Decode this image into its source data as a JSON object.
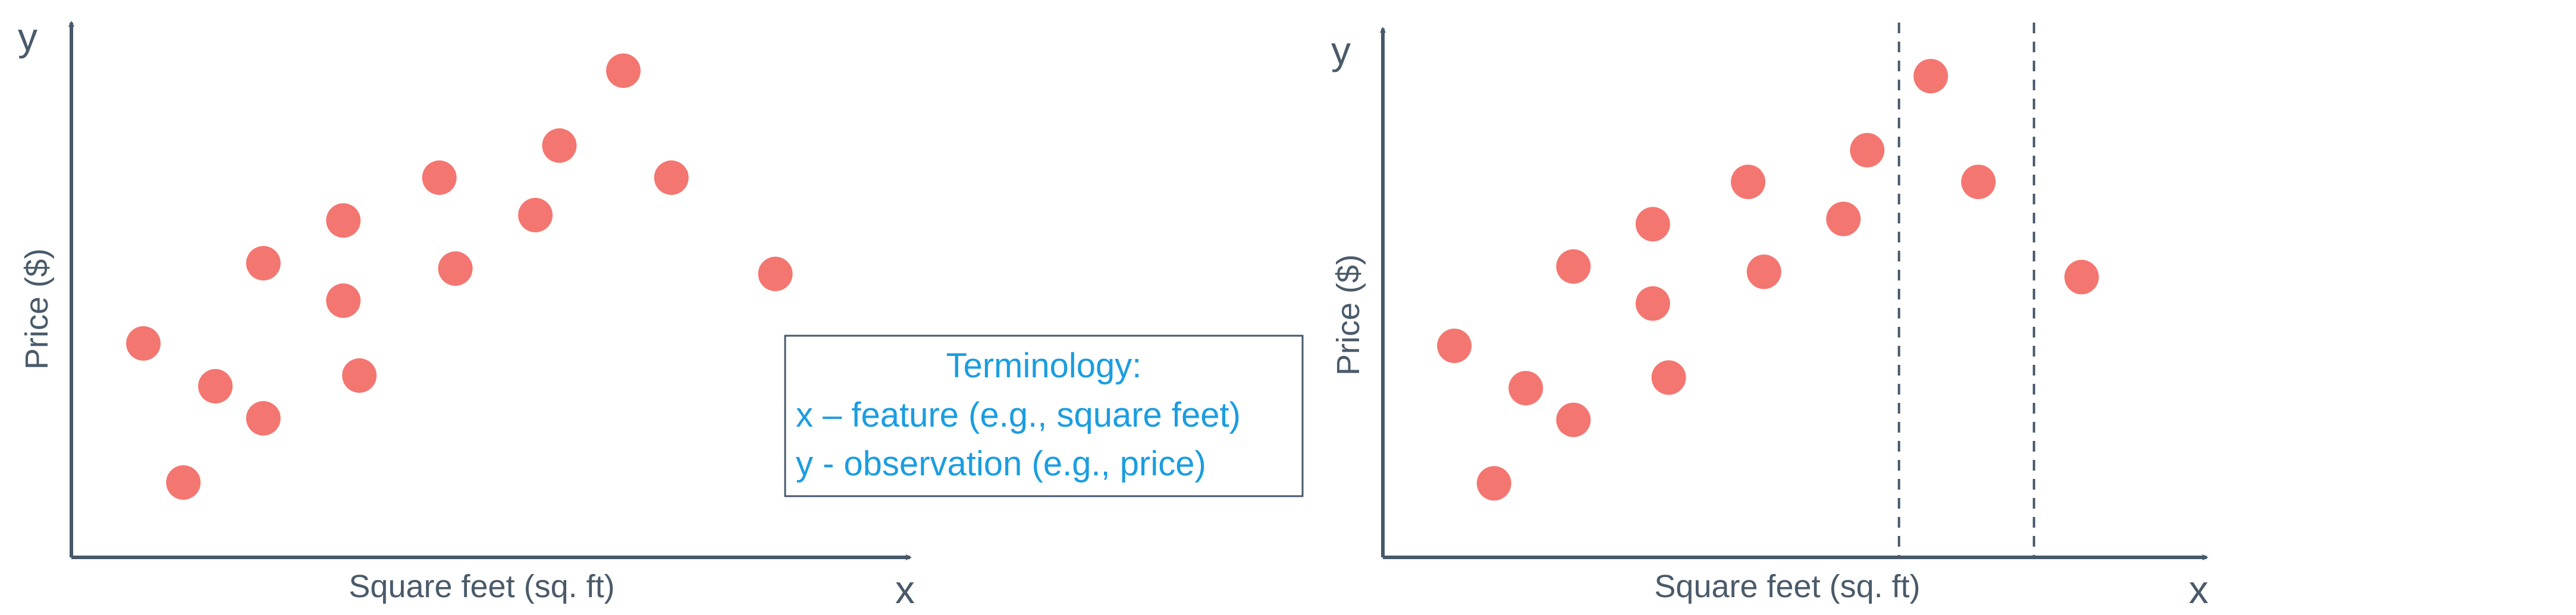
{
  "colors": {
    "point": "#f47670",
    "axis": "#47586b",
    "text": "#4a5a6a",
    "terminology": "#1a9de0",
    "dashed": "#47586b"
  },
  "terminology": {
    "title": "Terminology:",
    "line1": "x – feature (e.g., square feet)",
    "line2": "y - observation (e.g., price)"
  },
  "chart_data": [
    {
      "type": "scatter",
      "title": "",
      "xlabel": "Square feet (sq. ft)",
      "ylabel": "Price ($)",
      "x_axis_letter": "x",
      "y_axis_letter": "y",
      "xlim": [
        0,
        10
      ],
      "ylim": [
        0,
        10
      ],
      "grid": false,
      "points": [
        {
          "x": 0.9,
          "y": 4.0
        },
        {
          "x": 1.4,
          "y": 1.4
        },
        {
          "x": 1.8,
          "y": 3.2
        },
        {
          "x": 2.4,
          "y": 2.6
        },
        {
          "x": 2.4,
          "y": 5.5
        },
        {
          "x": 3.4,
          "y": 6.3
        },
        {
          "x": 3.4,
          "y": 4.8
        },
        {
          "x": 3.6,
          "y": 3.4
        },
        {
          "x": 4.6,
          "y": 7.1
        },
        {
          "x": 4.8,
          "y": 5.4
        },
        {
          "x": 5.8,
          "y": 6.4
        },
        {
          "x": 6.1,
          "y": 7.7
        },
        {
          "x": 6.9,
          "y": 9.1
        },
        {
          "x": 7.5,
          "y": 7.1
        },
        {
          "x": 8.8,
          "y": 5.3
        }
      ],
      "vertical_dashed_lines": []
    },
    {
      "type": "scatter",
      "title": "",
      "xlabel": "Square feet (sq. ft)",
      "ylabel": "Price ($)",
      "x_axis_letter": "x",
      "y_axis_letter": "y",
      "xlim": [
        0,
        10
      ],
      "ylim": [
        0,
        10
      ],
      "grid": false,
      "points": [
        {
          "x": 0.9,
          "y": 4.0
        },
        {
          "x": 1.4,
          "y": 1.4
        },
        {
          "x": 1.8,
          "y": 3.2
        },
        {
          "x": 2.4,
          "y": 2.6
        },
        {
          "x": 2.4,
          "y": 5.5
        },
        {
          "x": 3.4,
          "y": 6.3
        },
        {
          "x": 3.4,
          "y": 4.8
        },
        {
          "x": 3.6,
          "y": 3.4
        },
        {
          "x": 4.6,
          "y": 7.1
        },
        {
          "x": 4.8,
          "y": 5.4
        },
        {
          "x": 5.8,
          "y": 6.4
        },
        {
          "x": 6.1,
          "y": 7.7
        },
        {
          "x": 6.9,
          "y": 9.1
        },
        {
          "x": 7.5,
          "y": 7.1
        },
        {
          "x": 8.8,
          "y": 5.3
        }
      ],
      "vertical_dashed_lines": [
        6.5,
        8.2
      ]
    }
  ]
}
